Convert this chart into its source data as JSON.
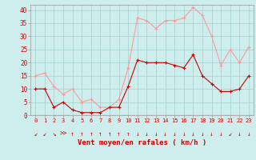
{
  "hours": [
    0,
    1,
    2,
    3,
    4,
    5,
    6,
    7,
    8,
    9,
    10,
    11,
    12,
    13,
    14,
    15,
    16,
    17,
    18,
    19,
    20,
    21,
    22,
    23
  ],
  "vent_moyen": [
    10,
    10,
    3,
    5,
    2,
    1,
    1,
    1,
    3,
    3,
    11,
    21,
    20,
    20,
    20,
    19,
    18,
    23,
    15,
    12,
    9,
    9,
    10,
    15
  ],
  "rafales": [
    15,
    16,
    11,
    8,
    10,
    5,
    6,
    3,
    3,
    6,
    18,
    37,
    36,
    33,
    36,
    36,
    37,
    41,
    38,
    30,
    19,
    25,
    20,
    26
  ],
  "xlabel": "Vent moyen/en rafales ( km/h )",
  "ylim": [
    0,
    42
  ],
  "yticks": [
    0,
    5,
    10,
    15,
    20,
    25,
    30,
    35,
    40
  ],
  "bg_color": "#ceeeed",
  "grid_color": "#aad4d3",
  "line_moyen_color": "#cc0000",
  "line_rafales_color": "#ff9999",
  "xlabel_color": "#cc0000",
  "tick_color": "#cc0000",
  "arrow_chars": [
    "↙",
    "↙",
    "↘",
    ">>",
    "↑",
    "↑",
    "↑",
    "↑",
    "↑",
    "↑",
    "↑",
    "↓",
    "↓",
    "↓",
    "↓",
    "↓",
    "↓",
    "↓",
    "↓",
    "↓",
    "↓",
    "↙",
    "↓",
    "↓"
  ]
}
